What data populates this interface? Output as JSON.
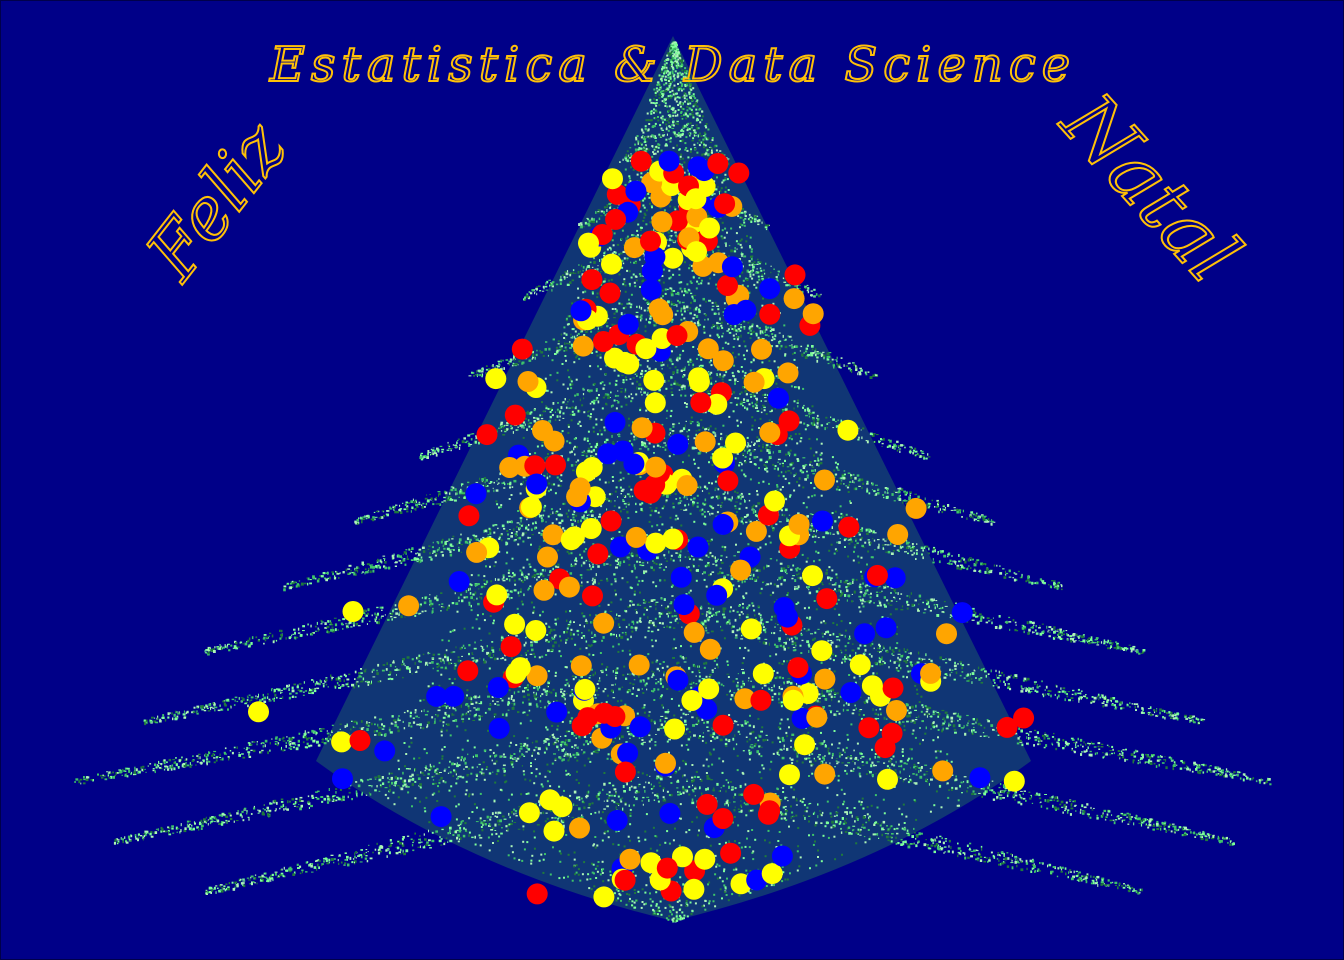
{
  "greeting": {
    "title": "Estatistica & Data Science",
    "left_word": "Feliz",
    "right_word": "Natal"
  },
  "colors": {
    "background": "#000088",
    "text": "#ffc107",
    "needle_light": "#7dff9a",
    "needle_mid": "#3ec46a",
    "needle_dark": "#1f7a3c",
    "ornament_red": "#ff0000",
    "ornament_yellow": "#ffff00",
    "ornament_orange": "#ffa500",
    "ornament_blue": "#0000ff"
  },
  "scene": {
    "subject": "christmas-tree",
    "decorations": "ornament-balls",
    "ornament_palette": [
      "red",
      "yellow",
      "orange",
      "blue"
    ]
  }
}
